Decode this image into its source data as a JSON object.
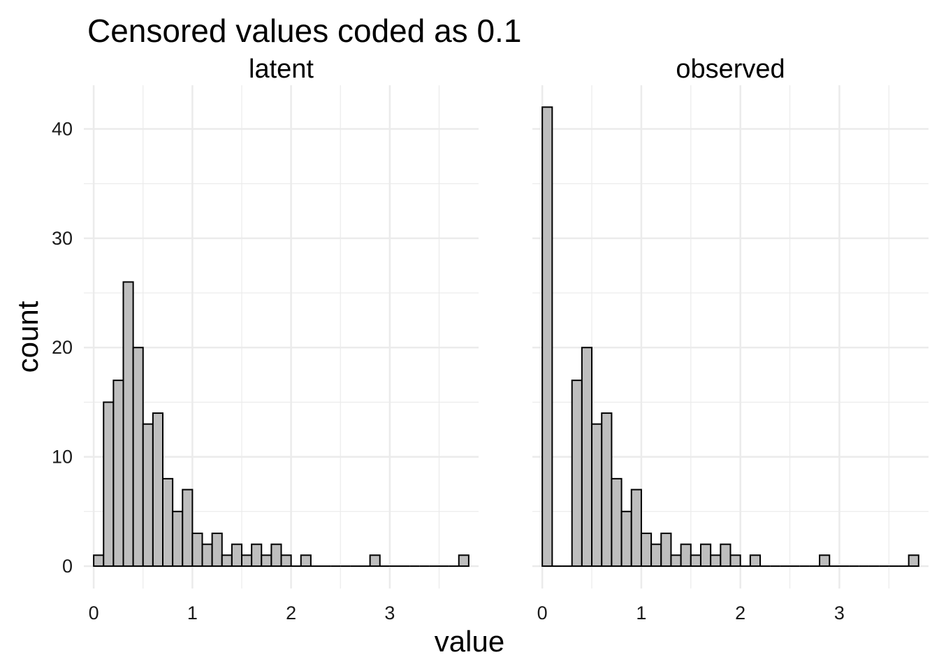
{
  "chart_data": {
    "type": "bar",
    "title": "Censored values coded as 0.1",
    "xlabel": "value",
    "ylabel": "count",
    "grid": true,
    "legend": "none",
    "bar_fill": "#bebebe",
    "bar_outline": "#000000",
    "grid_color": "#ebebeb",
    "binwidth": 0.1,
    "xlim": [
      -0.1,
      3.9
    ],
    "ylim": [
      0,
      44
    ],
    "x_ticks": [
      0,
      1,
      2,
      3
    ],
    "y_ticks": [
      0,
      10,
      20,
      30,
      40
    ],
    "panels": [
      {
        "label": "latent",
        "bin_centers": [
          0.05,
          0.15,
          0.25,
          0.35,
          0.45,
          0.55,
          0.65,
          0.75,
          0.85,
          0.95,
          1.05,
          1.15,
          1.25,
          1.35,
          1.45,
          1.55,
          1.65,
          1.75,
          1.85,
          1.95,
          2.05,
          2.15,
          2.25,
          2.35,
          2.45,
          2.55,
          2.65,
          2.75,
          2.85,
          2.95,
          3.05,
          3.15,
          3.25,
          3.35,
          3.45,
          3.55,
          3.65,
          3.75
        ],
        "counts": [
          1,
          15,
          17,
          26,
          20,
          13,
          14,
          8,
          5,
          7,
          3,
          2,
          3,
          1,
          2,
          1,
          2,
          1,
          2,
          1,
          0,
          1,
          0,
          0,
          0,
          0,
          0,
          0,
          1,
          0,
          0,
          0,
          0,
          0,
          0,
          0,
          0,
          1
        ]
      },
      {
        "label": "observed",
        "bin_centers": [
          0.05,
          0.15,
          0.25,
          0.35,
          0.45,
          0.55,
          0.65,
          0.75,
          0.85,
          0.95,
          1.05,
          1.15,
          1.25,
          1.35,
          1.45,
          1.55,
          1.65,
          1.75,
          1.85,
          1.95,
          2.05,
          2.15,
          2.25,
          2.35,
          2.45,
          2.55,
          2.65,
          2.75,
          2.85,
          2.95,
          3.05,
          3.15,
          3.25,
          3.35,
          3.45,
          3.55,
          3.65,
          3.75
        ],
        "counts": [
          42,
          0,
          0,
          17,
          20,
          13,
          14,
          8,
          5,
          7,
          3,
          2,
          3,
          1,
          2,
          1,
          2,
          1,
          2,
          1,
          0,
          1,
          0,
          0,
          0,
          0,
          0,
          0,
          1,
          0,
          0,
          0,
          0,
          0,
          0,
          0,
          0,
          1
        ]
      }
    ]
  }
}
